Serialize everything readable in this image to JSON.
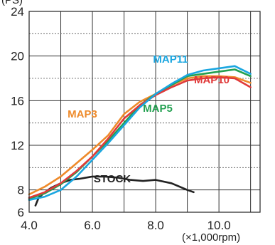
{
  "chart_data": {
    "type": "line",
    "ylabel_partial": "(PS)",
    "xunit": "(×1,000rpm)",
    "xlim": [
      4.0,
      11.3
    ],
    "ylim": [
      6,
      24
    ],
    "x_ticks": [
      4.0,
      6.0,
      8.0,
      10.0
    ],
    "x_tick_labels": [
      "4.0",
      "6.0",
      "8.0",
      "10.0"
    ],
    "y_ticks": [
      6,
      8,
      12,
      16,
      20,
      24
    ],
    "y_tick_labels": [
      "6",
      "8",
      "12",
      "16",
      "20",
      "24"
    ],
    "y_minor_grid": [
      10,
      14,
      18,
      22
    ],
    "x_grid": [
      5.0,
      6.0,
      7.0,
      8.0,
      9.0,
      10.0,
      11.0
    ],
    "series": [
      {
        "name": "STOCK",
        "color": "#222222",
        "x": [
          4.2,
          4.3,
          4.5,
          4.7,
          5.0,
          5.3,
          5.6,
          6.0,
          6.4,
          6.8,
          7.2,
          7.6,
          8.0,
          8.5,
          9.0,
          9.2
        ],
        "y": [
          6.6,
          7.3,
          7.8,
          8.2,
          8.6,
          8.9,
          9.0,
          9.2,
          9.2,
          9.1,
          8.9,
          8.8,
          8.9,
          8.6,
          8.0,
          7.8
        ]
      },
      {
        "name": "MAP3",
        "color": "#ee8a2a",
        "x": [
          4.0,
          4.5,
          5.0,
          5.5,
          6.0,
          6.5,
          7.0,
          7.5,
          8.0,
          8.5,
          9.0,
          9.5,
          10.0,
          10.5,
          11.0
        ],
        "y": [
          7.6,
          8.3,
          9.2,
          10.4,
          11.6,
          12.9,
          14.8,
          15.9,
          16.6,
          17.4,
          18.0,
          18.2,
          18.2,
          18.1,
          17.6
        ]
      },
      {
        "name": "MAP5",
        "color": "#22a050",
        "x": [
          4.0,
          4.5,
          5.0,
          5.5,
          6.0,
          6.5,
          7.0,
          7.5,
          8.0,
          8.5,
          9.0,
          9.5,
          10.0,
          10.5,
          11.0
        ],
        "y": [
          7.2,
          7.7,
          8.5,
          9.6,
          11.0,
          12.4,
          14.0,
          15.6,
          16.6,
          17.4,
          18.2,
          18.4,
          18.6,
          18.8,
          18.2
        ]
      },
      {
        "name": "MAP10",
        "color": "#e03a3a",
        "x": [
          4.0,
          4.5,
          5.0,
          5.5,
          6.0,
          6.5,
          7.0,
          7.5,
          8.0,
          8.5,
          9.0,
          9.5,
          10.0,
          10.5,
          11.0
        ],
        "y": [
          7.3,
          7.8,
          8.6,
          9.7,
          11.0,
          12.6,
          14.4,
          15.6,
          16.5,
          17.2,
          17.8,
          18.0,
          18.1,
          18.0,
          17.2
        ]
      },
      {
        "name": "MAP11",
        "color": "#1aa6e0",
        "x": [
          4.0,
          4.5,
          5.0,
          5.5,
          6.0,
          6.5,
          7.0,
          7.5,
          8.0,
          8.5,
          9.0,
          9.5,
          10.0,
          10.5,
          11.0
        ],
        "y": [
          7.1,
          7.4,
          8.0,
          9.2,
          10.7,
          12.2,
          13.8,
          15.4,
          16.6,
          17.5,
          18.3,
          18.7,
          18.9,
          19.1,
          18.4
        ]
      }
    ],
    "series_labels": [
      "MAP11",
      "MAP10",
      "MAP3",
      "MAP5",
      "STOCK"
    ]
  }
}
